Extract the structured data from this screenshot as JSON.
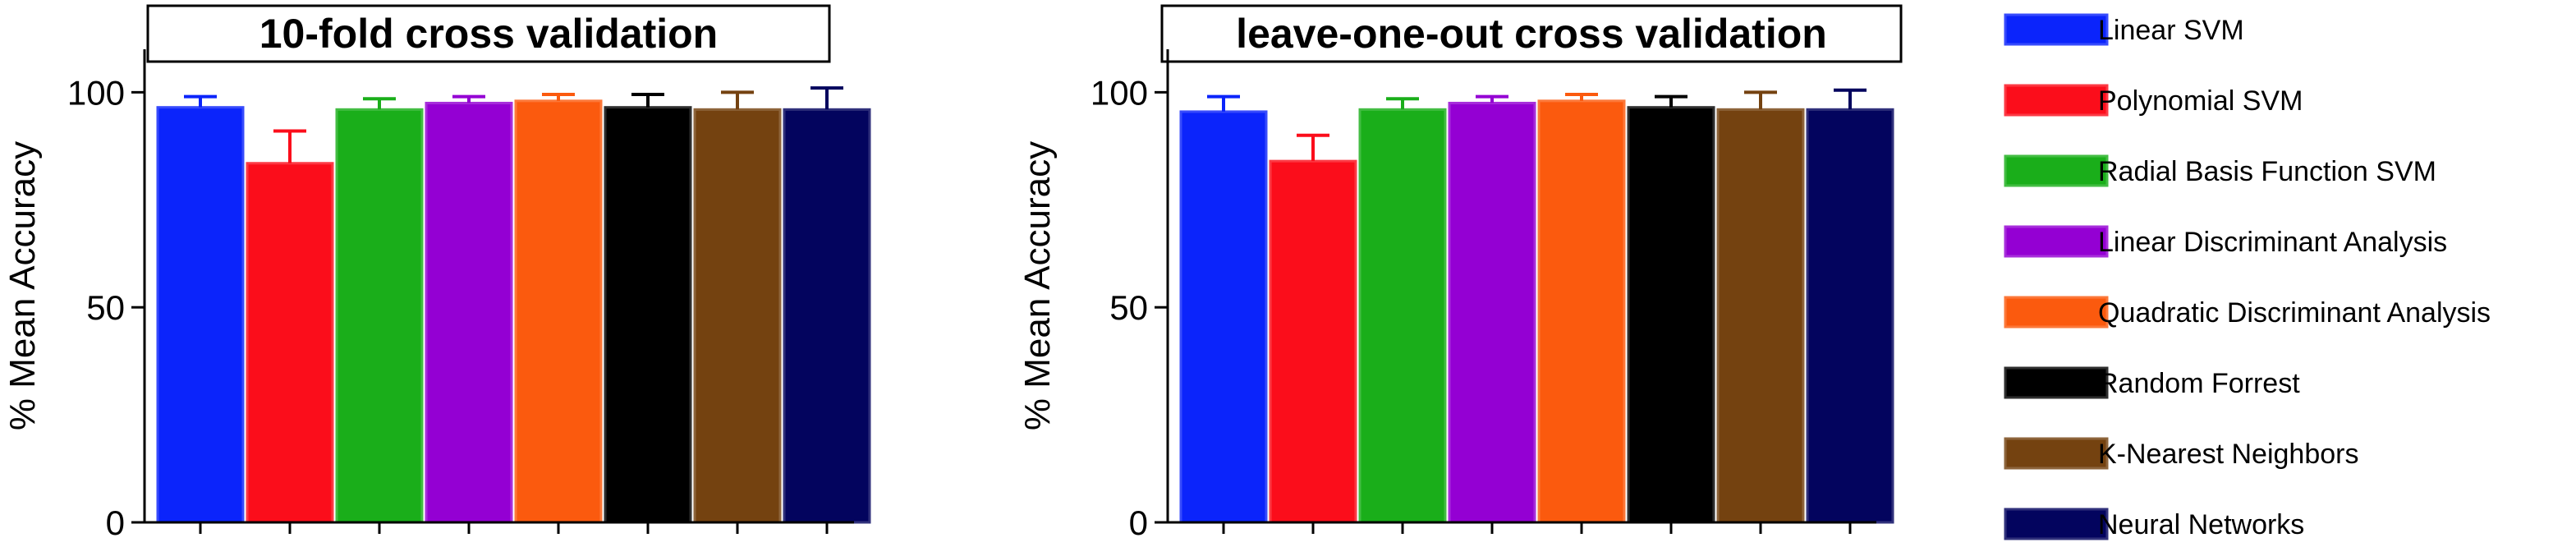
{
  "chart_data": [
    {
      "type": "bar",
      "title": "10-fold cross validation",
      "ylabel": "% Mean Accuracy",
      "ylim": [
        0,
        110
      ],
      "yticks": [
        0,
        50,
        100
      ],
      "categories": [
        "",
        "",
        "",
        "",
        "",
        "",
        "",
        ""
      ],
      "values": [
        96.5,
        83.5,
        96.0,
        97.5,
        98.0,
        96.5,
        96.0,
        96.0
      ],
      "errors": [
        2.5,
        7.5,
        2.5,
        1.5,
        1.5,
        3.0,
        4.0,
        5.0
      ],
      "colors": [
        "#0b24fb",
        "#fb0d1b",
        "#1aae1a",
        "#9400d3",
        "#fb5a0e",
        "#000000",
        "#744210",
        "#03045e"
      ]
    },
    {
      "type": "bar",
      "title": "leave-one-out cross validation",
      "ylabel": "% Mean Accuracy",
      "ylim": [
        0,
        110
      ],
      "yticks": [
        0,
        50,
        100
      ],
      "categories": [
        "",
        "",
        "",
        "",
        "",
        "",
        "",
        ""
      ],
      "values": [
        95.5,
        84.0,
        96.0,
        97.5,
        98.0,
        96.5,
        96.0,
        96.0
      ],
      "errors": [
        3.5,
        6.0,
        2.5,
        1.5,
        1.5,
        2.5,
        4.0,
        4.5
      ],
      "colors": [
        "#0b24fb",
        "#fb0d1b",
        "#1aae1a",
        "#9400d3",
        "#fb5a0e",
        "#000000",
        "#744210",
        "#03045e"
      ]
    }
  ],
  "legend": {
    "placement": "right",
    "items": [
      {
        "label": "Linear SVM",
        "color": "#0b24fb"
      },
      {
        "label": "Polynomial SVM",
        "color": "#fb0d1b"
      },
      {
        "label": "Radial Basis Function SVM",
        "color": "#1aae1a"
      },
      {
        "label": "Linear Discriminant Analysis",
        "color": "#9400d3"
      },
      {
        "label": "Quadratic Discriminant Analysis",
        "color": "#fb5a0e"
      },
      {
        "label": "Random Forrest",
        "color": "#000000"
      },
      {
        "label": "K-Nearest Neighbors",
        "color": "#744210"
      },
      {
        "label": "Neural Networks",
        "color": "#03045e"
      }
    ]
  }
}
